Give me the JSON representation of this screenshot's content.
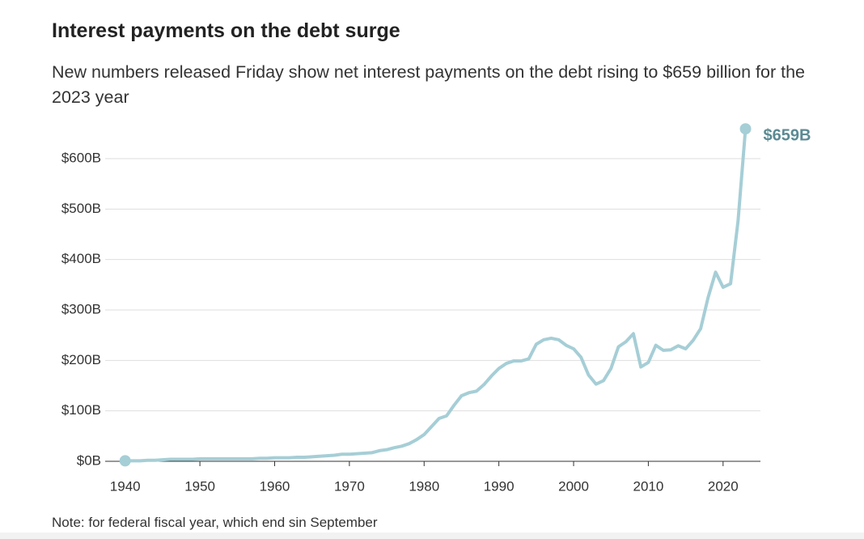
{
  "chart_data": {
    "type": "line",
    "title": "Interest payments on the debt surge",
    "subtitle": "New numbers released Friday show net interest payments on the debt rising to $659 billion for the 2023 year",
    "note": "Note: for federal fiscal year, which end sin September",
    "x": [
      1940,
      1941,
      1942,
      1943,
      1944,
      1945,
      1946,
      1947,
      1948,
      1949,
      1950,
      1951,
      1952,
      1953,
      1954,
      1955,
      1956,
      1957,
      1958,
      1959,
      1960,
      1961,
      1962,
      1963,
      1964,
      1965,
      1966,
      1967,
      1968,
      1969,
      1970,
      1971,
      1972,
      1973,
      1974,
      1975,
      1976,
      1977,
      1978,
      1979,
      1980,
      1981,
      1982,
      1983,
      1984,
      1985,
      1986,
      1987,
      1988,
      1989,
      1990,
      1991,
      1992,
      1993,
      1994,
      1995,
      1996,
      1997,
      1998,
      1999,
      2000,
      2001,
      2002,
      2003,
      2004,
      2005,
      2006,
      2007,
      2008,
      2009,
      2010,
      2011,
      2012,
      2013,
      2014,
      2015,
      2016,
      2017,
      2018,
      2019,
      2020,
      2021,
      2022,
      2023
    ],
    "series": [
      {
        "color": "#a6ced6",
        "values": [
          1,
          1,
          1,
          2,
          2,
          3,
          4,
          4,
          4,
          4,
          5,
          5,
          5,
          5,
          5,
          5,
          5,
          5,
          6,
          6,
          7,
          7,
          7,
          8,
          8,
          9,
          10,
          11,
          12,
          14,
          14,
          15,
          16,
          17,
          21,
          23,
          27,
          30,
          35,
          43,
          53,
          69,
          85,
          90,
          111,
          130,
          136,
          139,
          152,
          169,
          184,
          194,
          199,
          199,
          203,
          232,
          241,
          244,
          241,
          230,
          223,
          206,
          171,
          153,
          160,
          184,
          227,
          237,
          253,
          187,
          196,
          230,
          220,
          221,
          229,
          223,
          240,
          263,
          325,
          375,
          345,
          352,
          476,
          659
        ],
        "value_labels": [
          null,
          null,
          null,
          null,
          null,
          null,
          null,
          null,
          null,
          null,
          null,
          null,
          null,
          null,
          null,
          null,
          null,
          null,
          null,
          null,
          null,
          null,
          null,
          null,
          null,
          null,
          null,
          null,
          null,
          null,
          null,
          null,
          null,
          null,
          null,
          null,
          null,
          null,
          null,
          null,
          null,
          null,
          null,
          null,
          null,
          null,
          null,
          null,
          null,
          null,
          null,
          null,
          null,
          null,
          null,
          null,
          null,
          null,
          null,
          null,
          null,
          null,
          null,
          null,
          null,
          null,
          null,
          null,
          null,
          null,
          null,
          null,
          null,
          null,
          null,
          null,
          null,
          null,
          null,
          null,
          null,
          null,
          null,
          "$659B"
        ]
      }
    ],
    "label_color": "#5b8a93",
    "xlim": [
      1937,
      2025
    ],
    "xticks": [
      1940,
      1950,
      1960,
      1970,
      1980,
      1990,
      2000,
      2010,
      2020
    ],
    "ylim": [
      0,
      600
    ],
    "yticks": [
      {
        "value": 0,
        "label": "$0B"
      },
      {
        "value": 100,
        "label": "$100B"
      },
      {
        "value": 200,
        "label": "$200B"
      },
      {
        "value": 300,
        "label": "$300B"
      },
      {
        "value": 400,
        "label": "$400B"
      },
      {
        "value": 500,
        "label": "$500B"
      },
      {
        "value": 600,
        "label": "$600B"
      }
    ],
    "grid": true
  }
}
